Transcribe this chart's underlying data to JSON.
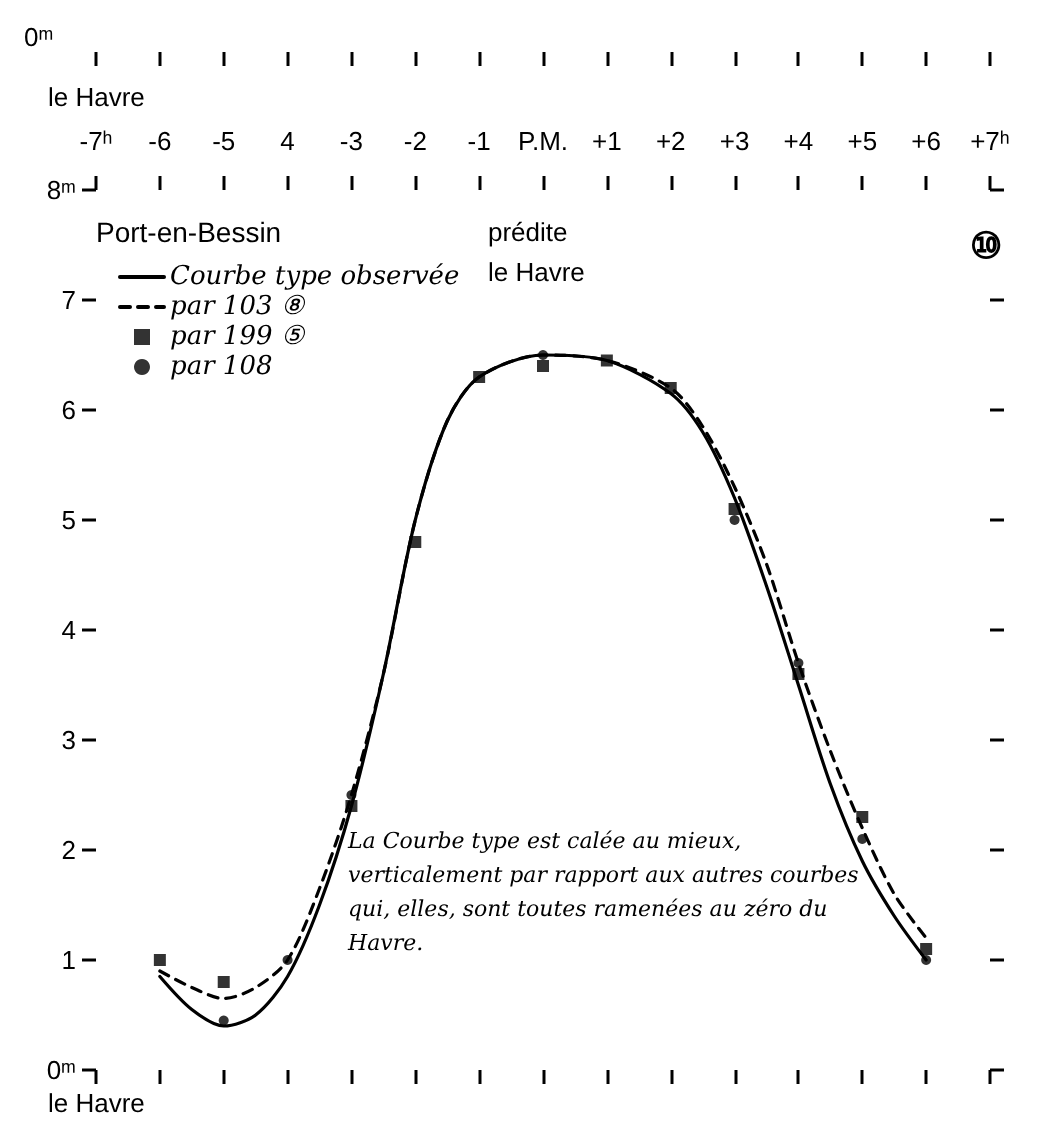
{
  "chart_data": {
    "type": "line",
    "legend_title": "Port-en-Bessin",
    "xlim": [
      -7,
      7
    ],
    "xticks": [
      {
        "value": -7,
        "label": "-7ʰ"
      },
      -6,
      -5,
      {
        "value": -4,
        "label": "4"
      },
      -3,
      -2,
      -1,
      {
        "value": 0,
        "label": "P.M."
      },
      {
        "value": 1,
        "label": "+1"
      },
      {
        "value": 2,
        "label": "+2"
      },
      {
        "value": 3,
        "label": "+3"
      },
      {
        "value": 4,
        "label": "+4"
      },
      {
        "value": 5,
        "label": "+5"
      },
      {
        "value": 6,
        "label": "+6"
      },
      {
        "value": 7,
        "label": "+7ʰ"
      }
    ],
    "ylim": [
      0,
      8
    ],
    "yticks": [
      {
        "value": 0,
        "label": "0ᵐ"
      },
      1,
      2,
      3,
      4,
      5,
      6,
      7,
      {
        "value": 8,
        "label": "8ᵐ"
      }
    ],
    "grid": false,
    "legend": "top left",
    "annotations": [
      "0ᵐ",
      "le Havre",
      "prédite le Havre",
      "⑩",
      "La Courbe type est calée au mieux, verticalement par rapport aux autres courbes qui, elles, sont toutes ramenées au zéro du Havre.",
      "le Havre"
    ],
    "series": [
      {
        "name": "Courbe type observée",
        "type": "line",
        "line_style": "solid",
        "marker": "none",
        "color": "#000000",
        "x": [
          -6,
          -5.5,
          -5,
          -4.5,
          -4,
          -3.5,
          -3,
          -2.5,
          -2,
          -1.5,
          -1,
          0,
          1,
          2,
          2.5,
          3,
          3.5,
          4,
          4.5,
          5,
          5.5,
          6
        ],
        "values": [
          0.85,
          0.55,
          0.4,
          0.5,
          0.85,
          1.5,
          2.4,
          3.6,
          5.0,
          5.9,
          6.3,
          6.5,
          6.45,
          6.15,
          5.8,
          5.2,
          4.4,
          3.5,
          2.6,
          1.9,
          1.4,
          1.0
        ]
      },
      {
        "name": "par 103 ⑧",
        "type": "line",
        "line_style": "dashed",
        "marker": "none",
        "color": "#000000",
        "x": [
          -6,
          -5.5,
          -5,
          -4.5,
          -4,
          -3.5,
          -3,
          -2.5,
          -2,
          -1.5,
          -1,
          0,
          1,
          2,
          2.5,
          3,
          3.5,
          4,
          4.5,
          5,
          5.5,
          6
        ],
        "values": [
          0.9,
          0.75,
          0.65,
          0.75,
          1.0,
          1.65,
          2.5,
          3.6,
          5.0,
          5.9,
          6.3,
          6.5,
          6.45,
          6.2,
          5.85,
          5.3,
          4.6,
          3.7,
          2.9,
          2.2,
          1.6,
          1.2
        ]
      },
      {
        "name": "par 199 ⑤",
        "type": "scatter",
        "marker": "square",
        "color": "#000000",
        "x": [
          -6,
          -5,
          -3,
          -2,
          -1,
          0,
          1,
          2,
          3,
          4,
          5,
          6
        ],
        "values": [
          1.0,
          0.8,
          2.4,
          4.8,
          6.3,
          6.4,
          6.45,
          6.2,
          5.1,
          3.6,
          2.3,
          1.1
        ]
      },
      {
        "name": "par 108",
        "type": "scatter",
        "marker": "circle",
        "color": "#000000",
        "x": [
          -5,
          -4,
          -3,
          -1,
          0,
          1,
          2,
          3,
          4,
          5,
          6
        ],
        "values": [
          0.45,
          1.0,
          2.5,
          null,
          6.5,
          null,
          null,
          5.0,
          3.7,
          2.1,
          1.0
        ]
      }
    ]
  }
}
